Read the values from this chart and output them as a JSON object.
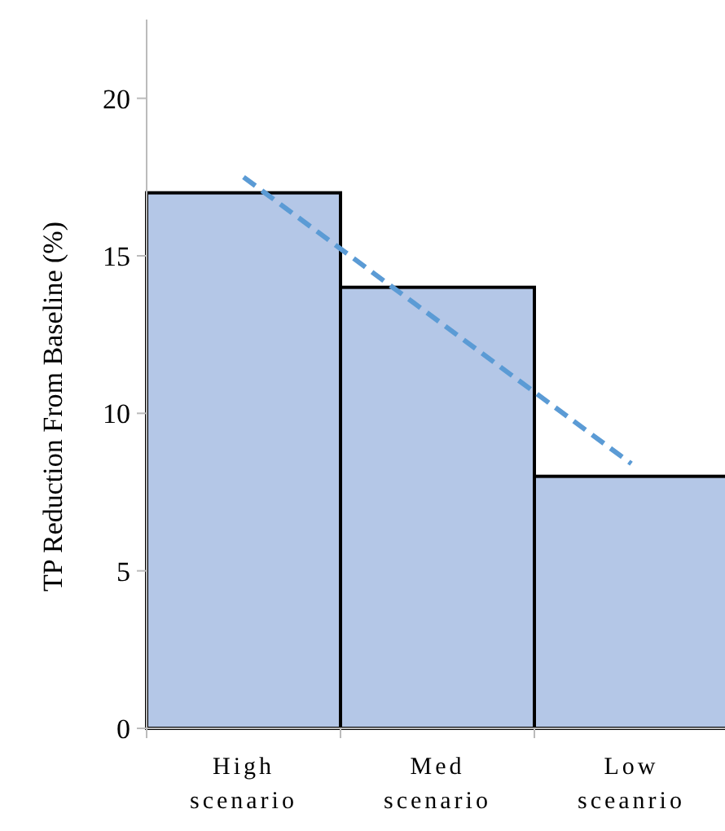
{
  "chart_data": {
    "type": "bar",
    "ylabel": "TP Reduction From Baseline (%)",
    "categories": [
      "High scenario",
      "Med scenario",
      "Low sceanrio"
    ],
    "ylim": [
      0,
      22.5
    ],
    "yticks": [
      0,
      5,
      10,
      15,
      20
    ],
    "grid": false,
    "series": [
      {
        "color": "#b4c7e7",
        "values": [
          17,
          14,
          8
        ]
      },
      {
        "type": "line",
        "color": "#5b9bd5",
        "line_style": "dashed",
        "marker": "none",
        "values": [
          17.5,
          12.95,
          8.4
        ]
      }
    ]
  }
}
